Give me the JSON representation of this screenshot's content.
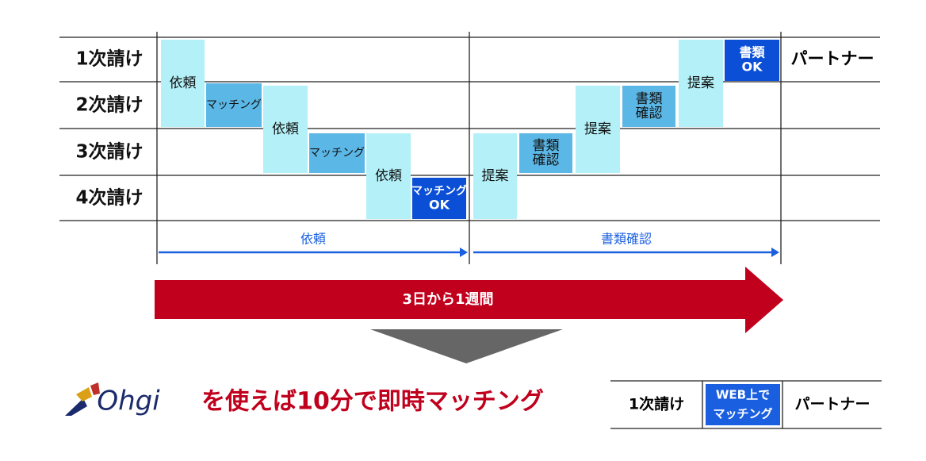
{
  "rows": [
    "1次請け",
    "2次請け",
    "3次請け",
    "4次請け"
  ],
  "partner": "パートナー",
  "boxes": [
    {
      "lines": [
        "依頼"
      ]
    },
    {
      "lines": [
        "マッチング"
      ]
    },
    {
      "lines": [
        "依頼"
      ]
    },
    {
      "lines": [
        "マッチング"
      ]
    },
    {
      "lines": [
        "依頼"
      ]
    },
    {
      "lines": [
        "マッチング",
        "OK"
      ]
    },
    {
      "lines": [
        "提案"
      ]
    },
    {
      "lines": [
        "書類",
        "確認"
      ]
    },
    {
      "lines": [
        "提案"
      ]
    },
    {
      "lines": [
        "書類",
        "確認"
      ]
    },
    {
      "lines": [
        "提案"
      ]
    },
    {
      "lines": [
        "書類",
        "OK"
      ]
    }
  ],
  "phases": [
    "依頼",
    "書類確認"
  ],
  "duration": "3日から1週間",
  "logo": "Ohgi",
  "headline": "を使えば10分で即時マッチング",
  "after": {
    "from": "1次請け",
    "via": [
      "WEB上で",
      "マッチング"
    ],
    "to": "パートナー"
  }
}
